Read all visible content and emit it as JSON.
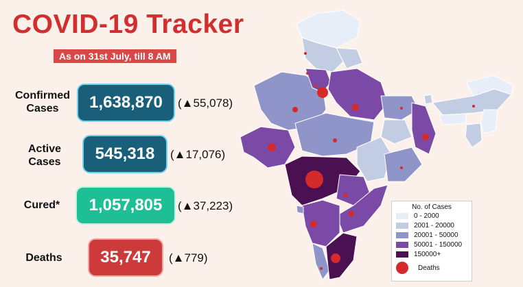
{
  "header": {
    "title": "COVID-19 Tracker",
    "subtitle": "As on 31st July, till 8 AM"
  },
  "stats": {
    "confirmed": {
      "label_line1": "Confirmed",
      "label_line2": "Cases",
      "value": "1,638,870",
      "delta": "(▲55,078)"
    },
    "active": {
      "label_line1": "Active",
      "label_line2": "Cases",
      "value": "545,318",
      "delta": "(▲17,076)"
    },
    "cured": {
      "label": "Cured*",
      "value": "1,057,805",
      "delta": "(▲37,223)"
    },
    "deaths": {
      "label": "Deaths",
      "value": "35,747",
      "delta": "(▲779)"
    }
  },
  "legend": {
    "title": "No. of Cases",
    "bins": [
      {
        "label": "0 - 2000",
        "color": "#e8eef7"
      },
      {
        "label": "2001 - 20000",
        "color": "#c2cce2"
      },
      {
        "label": "20001 - 50000",
        "color": "#8f95c8"
      },
      {
        "label": "50001 - 150000",
        "color": "#7b4aa6"
      },
      {
        "label": "150000+",
        "color": "#4a1052"
      }
    ],
    "deaths_label": "Deaths"
  },
  "map": {
    "region": "India",
    "death_marker_color": "#d42a2a"
  }
}
